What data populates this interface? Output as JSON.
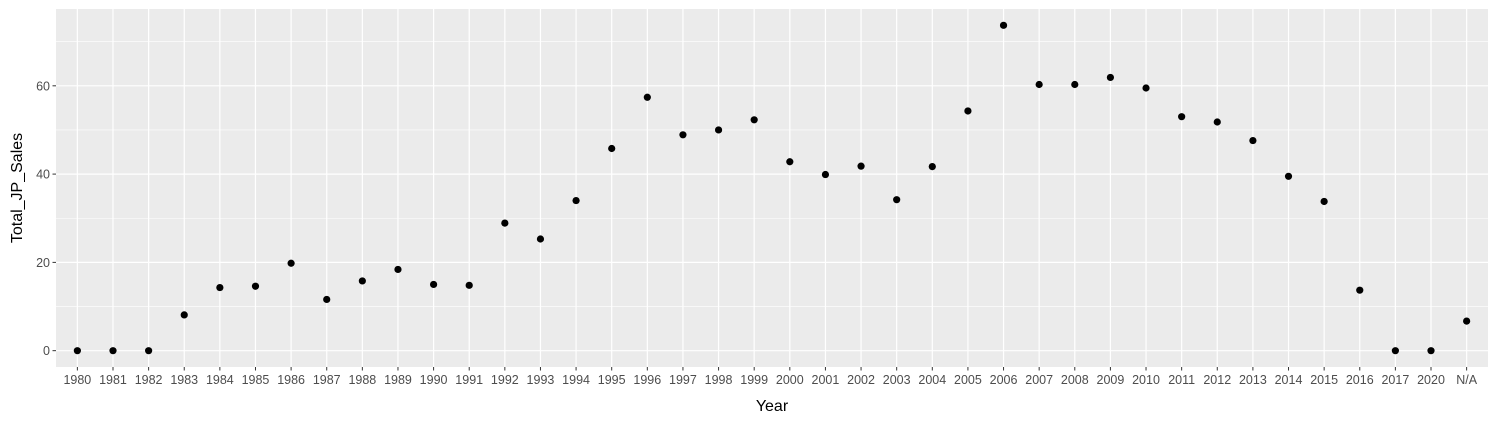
{
  "chart_data": {
    "type": "scatter",
    "title": "",
    "xlabel": "Year",
    "ylabel": "Total_JP_Sales",
    "categories": [
      "1980",
      "1981",
      "1982",
      "1983",
      "1984",
      "1985",
      "1986",
      "1987",
      "1988",
      "1989",
      "1990",
      "1991",
      "1992",
      "1993",
      "1994",
      "1995",
      "1996",
      "1997",
      "1998",
      "1999",
      "2000",
      "2001",
      "2002",
      "2003",
      "2004",
      "2005",
      "2006",
      "2007",
      "2008",
      "2009",
      "2010",
      "2011",
      "2012",
      "2013",
      "2014",
      "2015",
      "2016",
      "2017",
      "2020",
      "N/A"
    ],
    "values": [
      0,
      0,
      0,
      8.1,
      14.3,
      14.6,
      19.8,
      11.6,
      15.8,
      18.4,
      15.0,
      14.8,
      28.9,
      25.3,
      34.0,
      45.8,
      57.4,
      48.9,
      50.0,
      52.3,
      42.8,
      39.9,
      41.8,
      34.2,
      41.7,
      54.3,
      73.7,
      60.3,
      60.3,
      61.9,
      59.5,
      53.0,
      51.8,
      47.6,
      39.5,
      33.8,
      13.7,
      0,
      0,
      6.7
    ],
    "ylim": [
      -3.7,
      77.4
    ],
    "y_ticks": [
      0,
      20,
      40,
      60
    ],
    "grid": true,
    "legend": "none",
    "colors": {
      "panel": "#ebebeb",
      "grid": "#ffffff",
      "point": "#000000",
      "tick_label": "#4d4d4d"
    }
  }
}
